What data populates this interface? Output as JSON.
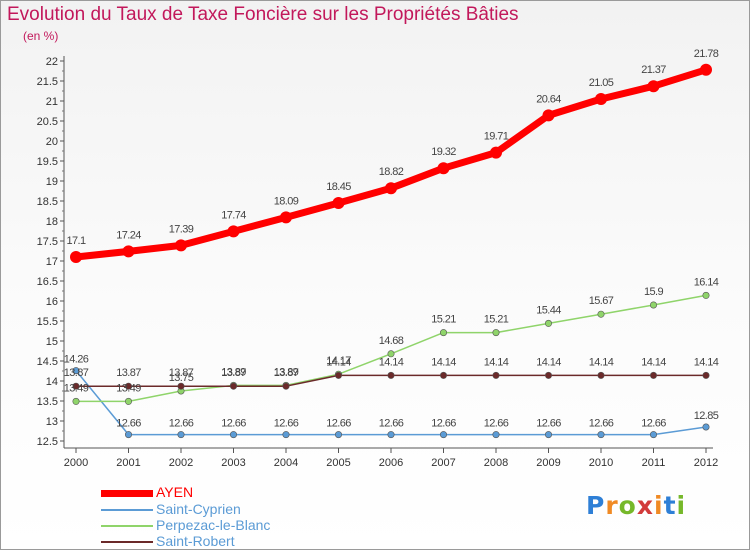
{
  "chart_data": {
    "type": "line",
    "title": "Evolution du Taux de Taxe Foncière sur les Propriétés Bâties",
    "unit_label": "(en %)",
    "xlabel": "",
    "ylabel": "",
    "x": [
      "2000",
      "2001",
      "2002",
      "2003",
      "2004",
      "2005",
      "2006",
      "2007",
      "2008",
      "2009",
      "2010",
      "2011",
      "2012"
    ],
    "ylim": [
      12.5,
      22
    ],
    "yticks": [
      "12.5",
      "13",
      "13.5",
      "14",
      "14.5",
      "15",
      "15.5",
      "16",
      "16.5",
      "17",
      "17.5",
      "18",
      "18.5",
      "19",
      "19.5",
      "20",
      "20.5",
      "21",
      "21.5",
      "22"
    ],
    "grid": false,
    "legend_position": "bottom-left",
    "series": [
      {
        "name": "AYEN",
        "color": "#ff0000",
        "values": [
          17.1,
          17.24,
          17.39,
          17.74,
          18.09,
          18.45,
          18.82,
          19.32,
          19.71,
          20.64,
          21.05,
          21.37,
          21.78
        ],
        "labels": [
          "17.1",
          "17.24",
          "17.39",
          "17.74",
          "18.09",
          "18.45",
          "18.82",
          "19.32",
          "19.71",
          "20.64",
          "21.05",
          "21.37",
          "21.78"
        ]
      },
      {
        "name": "Saint-Cyprien",
        "color": "#5b9bd5",
        "values": [
          14.26,
          12.66,
          12.66,
          12.66,
          12.66,
          12.66,
          12.66,
          12.66,
          12.66,
          12.66,
          12.66,
          12.66,
          12.85
        ],
        "labels": [
          "14.26",
          "12.66",
          "12.66",
          "12.66",
          "12.66",
          "12.66",
          "12.66",
          "12.66",
          "12.66",
          "12.66",
          "12.66",
          "12.66",
          "12.85"
        ]
      },
      {
        "name": "Perpezac-le-Blanc",
        "color": "#8fd46a",
        "values": [
          13.49,
          13.49,
          13.75,
          13.89,
          13.89,
          14.17,
          14.68,
          15.21,
          15.21,
          15.44,
          15.67,
          15.9,
          16.14
        ],
        "labels": [
          "13.49",
          "13.49",
          "13.75",
          "13.89",
          "13.89",
          "14.17",
          "14.68",
          "15.21",
          "15.21",
          "15.44",
          "15.67",
          "15.9",
          "16.14"
        ]
      },
      {
        "name": "Saint-Robert",
        "color": "#6b2a2a",
        "values": [
          13.87,
          13.87,
          13.87,
          13.87,
          13.87,
          14.14,
          14.14,
          14.14,
          14.14,
          14.14,
          14.14,
          14.14,
          14.14
        ],
        "labels": [
          "13.87",
          "13.87",
          "13.87",
          "13.87",
          "13.87",
          "14.14",
          "14.14",
          "14.14",
          "14.14",
          "14.14",
          "14.14",
          "14.14",
          "14.14"
        ]
      }
    ]
  },
  "logo": {
    "letters": [
      "P",
      "r",
      "o",
      "x",
      "i",
      "t",
      "i"
    ],
    "colors": [
      "#2e7fd6",
      "#f08a24",
      "#76b82a",
      "#d23a3a",
      "#f08a24",
      "#2e7fd6",
      "#76b82a"
    ]
  }
}
